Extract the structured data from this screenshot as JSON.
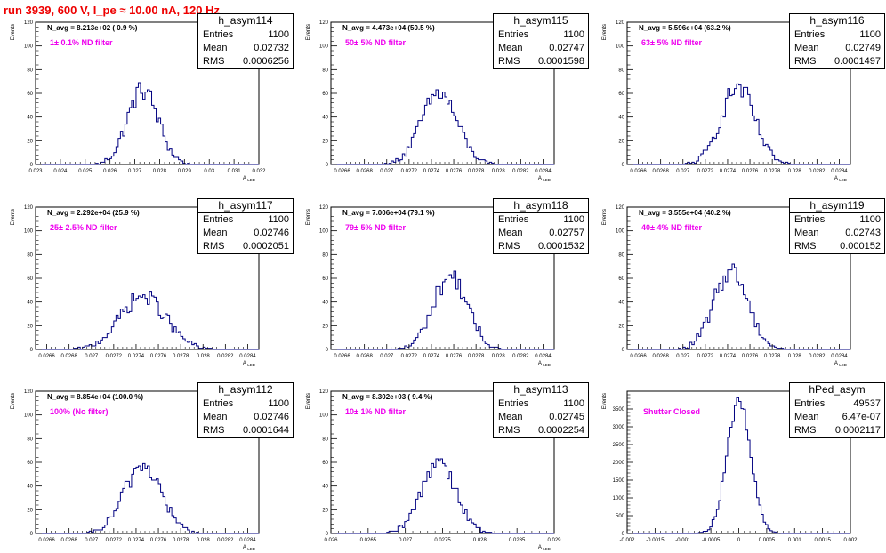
{
  "title": "run 3939,   600 V, I_pe ≈ 10.00 nA, 120 Hz",
  "chart_data": [
    {
      "type": "bar",
      "name": "h_asym114",
      "entries": "1100",
      "mean": "0.02732",
      "rms": "0.0006256",
      "navg": "N_avg = 8.213e+02 ( 0.9 %)",
      "filter": "1± 0.1% ND filter",
      "ylabel": "Events",
      "xlabel": "A_LED",
      "xlim": [
        0.023,
        0.032
      ],
      "ylim": [
        0,
        120
      ],
      "xticks": [
        "0.023",
        "0.024",
        "0.025",
        "0.026",
        "0.027",
        "0.028",
        "0.029",
        "0.03",
        "0.031",
        "0.032"
      ],
      "xtick_values": [
        0.023,
        0.024,
        0.025,
        0.026,
        0.027,
        0.028,
        0.029,
        0.03,
        0.031,
        0.032
      ],
      "yticks": [
        0,
        20,
        40,
        60,
        80,
        100,
        120
      ],
      "center": 0.02732,
      "sigma": 0.00062,
      "peak": 63
    },
    {
      "type": "bar",
      "name": "h_asym115",
      "entries": "1100",
      "mean": "0.02747",
      "rms": "0.0001598",
      "navg": "N_avg = 4.473e+04 (50.5 %)",
      "filter": "50± 5% ND filter",
      "ylabel": "Events",
      "xlabel": "A_LED",
      "xlim": [
        0.0265,
        0.0285
      ],
      "ylim": [
        0,
        120
      ],
      "xticks": [
        "0.0266",
        "0.0268",
        "0.027",
        "0.0272",
        "0.0274",
        "0.0276",
        "0.0278",
        "0.028",
        "0.0282",
        "0.0284"
      ],
      "xtick_values": [
        0.0266,
        0.0268,
        0.027,
        0.0272,
        0.0274,
        0.0276,
        0.0278,
        0.028,
        0.0282,
        0.0284
      ],
      "yticks": [
        0,
        20,
        40,
        60,
        80,
        100,
        120
      ],
      "center": 0.02747,
      "sigma": 0.00016,
      "peak": 60
    },
    {
      "type": "bar",
      "name": "h_asym116",
      "entries": "1100",
      "mean": "0.02749",
      "rms": "0.0001497",
      "navg": "N_avg = 5.596e+04 (63.2 %)",
      "filter": "63± 5% ND filter",
      "ylabel": "Events",
      "xlabel": "A_LED",
      "xlim": [
        0.0265,
        0.0285
      ],
      "ylim": [
        0,
        120
      ],
      "xticks": [
        "0.0266",
        "0.0268",
        "0.027",
        "0.0272",
        "0.0274",
        "0.0276",
        "0.0278",
        "0.028",
        "0.0282",
        "0.0284"
      ],
      "xtick_values": [
        0.0266,
        0.0268,
        0.027,
        0.0272,
        0.0274,
        0.0276,
        0.0278,
        0.028,
        0.0282,
        0.0284
      ],
      "yticks": [
        0,
        20,
        40,
        60,
        80,
        100,
        120
      ],
      "center": 0.02749,
      "sigma": 0.00015,
      "peak": 65
    },
    {
      "type": "bar",
      "name": "h_asym117",
      "entries": "1100",
      "mean": "0.02746",
      "rms": "0.0002051",
      "navg": "N_avg = 2.292e+04 (25.9 %)",
      "filter": "25± 2.5% ND filter",
      "ylabel": "Events",
      "xlabel": "A_LED",
      "xlim": [
        0.0265,
        0.0285
      ],
      "ylim": [
        0,
        120
      ],
      "xticks": [
        "0.0266",
        "0.0268",
        "0.027",
        "0.0272",
        "0.0274",
        "0.0276",
        "0.0278",
        "0.028",
        "0.0282",
        "0.0284"
      ],
      "xtick_values": [
        0.0266,
        0.0268,
        0.027,
        0.0272,
        0.0274,
        0.0276,
        0.0278,
        0.028,
        0.0282,
        0.0284
      ],
      "yticks": [
        0,
        20,
        40,
        60,
        80,
        100,
        120
      ],
      "center": 0.02746,
      "sigma": 0.000205,
      "peak": 45
    },
    {
      "type": "bar",
      "name": "h_asym118",
      "entries": "1100",
      "mean": "0.02757",
      "rms": "0.0001532",
      "navg": "N_avg = 7.006e+04 (79.1 %)",
      "filter": "79± 5% ND filter",
      "ylabel": "Events",
      "xlabel": "A_LED",
      "xlim": [
        0.0265,
        0.0285
      ],
      "ylim": [
        0,
        120
      ],
      "xticks": [
        "0.0266",
        "0.0268",
        "0.027",
        "0.0272",
        "0.0274",
        "0.0276",
        "0.0278",
        "0.028",
        "0.0282",
        "0.0284"
      ],
      "xtick_values": [
        0.0266,
        0.0268,
        0.027,
        0.0272,
        0.0274,
        0.0276,
        0.0278,
        0.028,
        0.0282,
        0.0284
      ],
      "yticks": [
        0,
        20,
        40,
        60,
        80,
        100,
        120
      ],
      "center": 0.02757,
      "sigma": 0.000153,
      "peak": 62
    },
    {
      "type": "bar",
      "name": "h_asym119",
      "entries": "1100",
      "mean": "0.02743",
      "rms": "0.000152",
      "navg": "N_avg = 3.555e+04 (40.2 %)",
      "filter": "40± 4% ND filter",
      "ylabel": "Events",
      "xlabel": "A_LED",
      "xlim": [
        0.0265,
        0.0285
      ],
      "ylim": [
        0,
        120
      ],
      "xticks": [
        "0.0266",
        "0.0268",
        "0.027",
        "0.0272",
        "0.0274",
        "0.0276",
        "0.0278",
        "0.028",
        "0.0282",
        "0.0284"
      ],
      "xtick_values": [
        0.0266,
        0.0268,
        0.027,
        0.0272,
        0.0274,
        0.0276,
        0.0278,
        0.028,
        0.0282,
        0.0284
      ],
      "yticks": [
        0,
        20,
        40,
        60,
        80,
        100,
        120
      ],
      "center": 0.02743,
      "sigma": 0.000152,
      "peak": 67
    },
    {
      "type": "bar",
      "name": "h_asym112",
      "entries": "1100",
      "mean": "0.02746",
      "rms": "0.0001644",
      "navg": "N_avg = 8.854e+04 (100.0 %)",
      "filter": "100% (No filter)",
      "ylabel": "Events",
      "xlabel": "A_LED",
      "xlim": [
        0.0265,
        0.0285
      ],
      "ylim": [
        0,
        120
      ],
      "xticks": [
        "0.0266",
        "0.0268",
        "0.027",
        "0.0272",
        "0.0274",
        "0.0276",
        "0.0278",
        "0.028",
        "0.0282",
        "0.0284"
      ],
      "xtick_values": [
        0.0266,
        0.0268,
        0.027,
        0.0272,
        0.0274,
        0.0276,
        0.0278,
        0.028,
        0.0282,
        0.0284
      ],
      "yticks": [
        0,
        20,
        40,
        60,
        80,
        100,
        120
      ],
      "center": 0.02746,
      "sigma": 0.000164,
      "peak": 58
    },
    {
      "type": "bar",
      "name": "h_asym113",
      "entries": "1100",
      "mean": "0.02745",
      "rms": "0.0002254",
      "navg": "N_avg = 8.302e+03 ( 9.4 %)",
      "filter": "10± 1% ND filter",
      "ylabel": "Events",
      "xlabel": "A_LED",
      "xlim": [
        0.026,
        0.029
      ],
      "ylim": [
        0,
        120
      ],
      "xticks": [
        "0.026",
        "0.0265",
        "0.027",
        "0.0275",
        "0.028",
        "0.0285",
        "0.029"
      ],
      "xtick_values": [
        0.026,
        0.0265,
        0.027,
        0.0275,
        0.028,
        0.0285,
        0.029
      ],
      "yticks": [
        0,
        20,
        40,
        60,
        80,
        100,
        120
      ],
      "center": 0.02745,
      "sigma": 0.000225,
      "peak": 62
    },
    {
      "type": "bar",
      "name": "hPed_asym",
      "entries": "49537",
      "mean": "6.47e-07",
      "rms": "0.0002117",
      "navg": "",
      "filter": "Shutter Closed",
      "ylabel": "Events",
      "xlabel": "",
      "xlim": [
        -0.002,
        0.002
      ],
      "ylim": [
        0,
        4000
      ],
      "xticks": [
        "-0.002",
        "-0.0015",
        "-0.001",
        "-0.0005",
        "0",
        "0.0005",
        "0.001",
        "0.0015",
        "0.002"
      ],
      "xtick_values": [
        -0.002,
        -0.0015,
        -0.001,
        -0.0005,
        0,
        0.0005,
        0.001,
        0.0015,
        0.002
      ],
      "yticks": [
        0,
        500,
        1000,
        1500,
        2000,
        2500,
        3000,
        3500
      ],
      "center": 0.0,
      "sigma": 0.000212,
      "peak": 3700
    }
  ]
}
